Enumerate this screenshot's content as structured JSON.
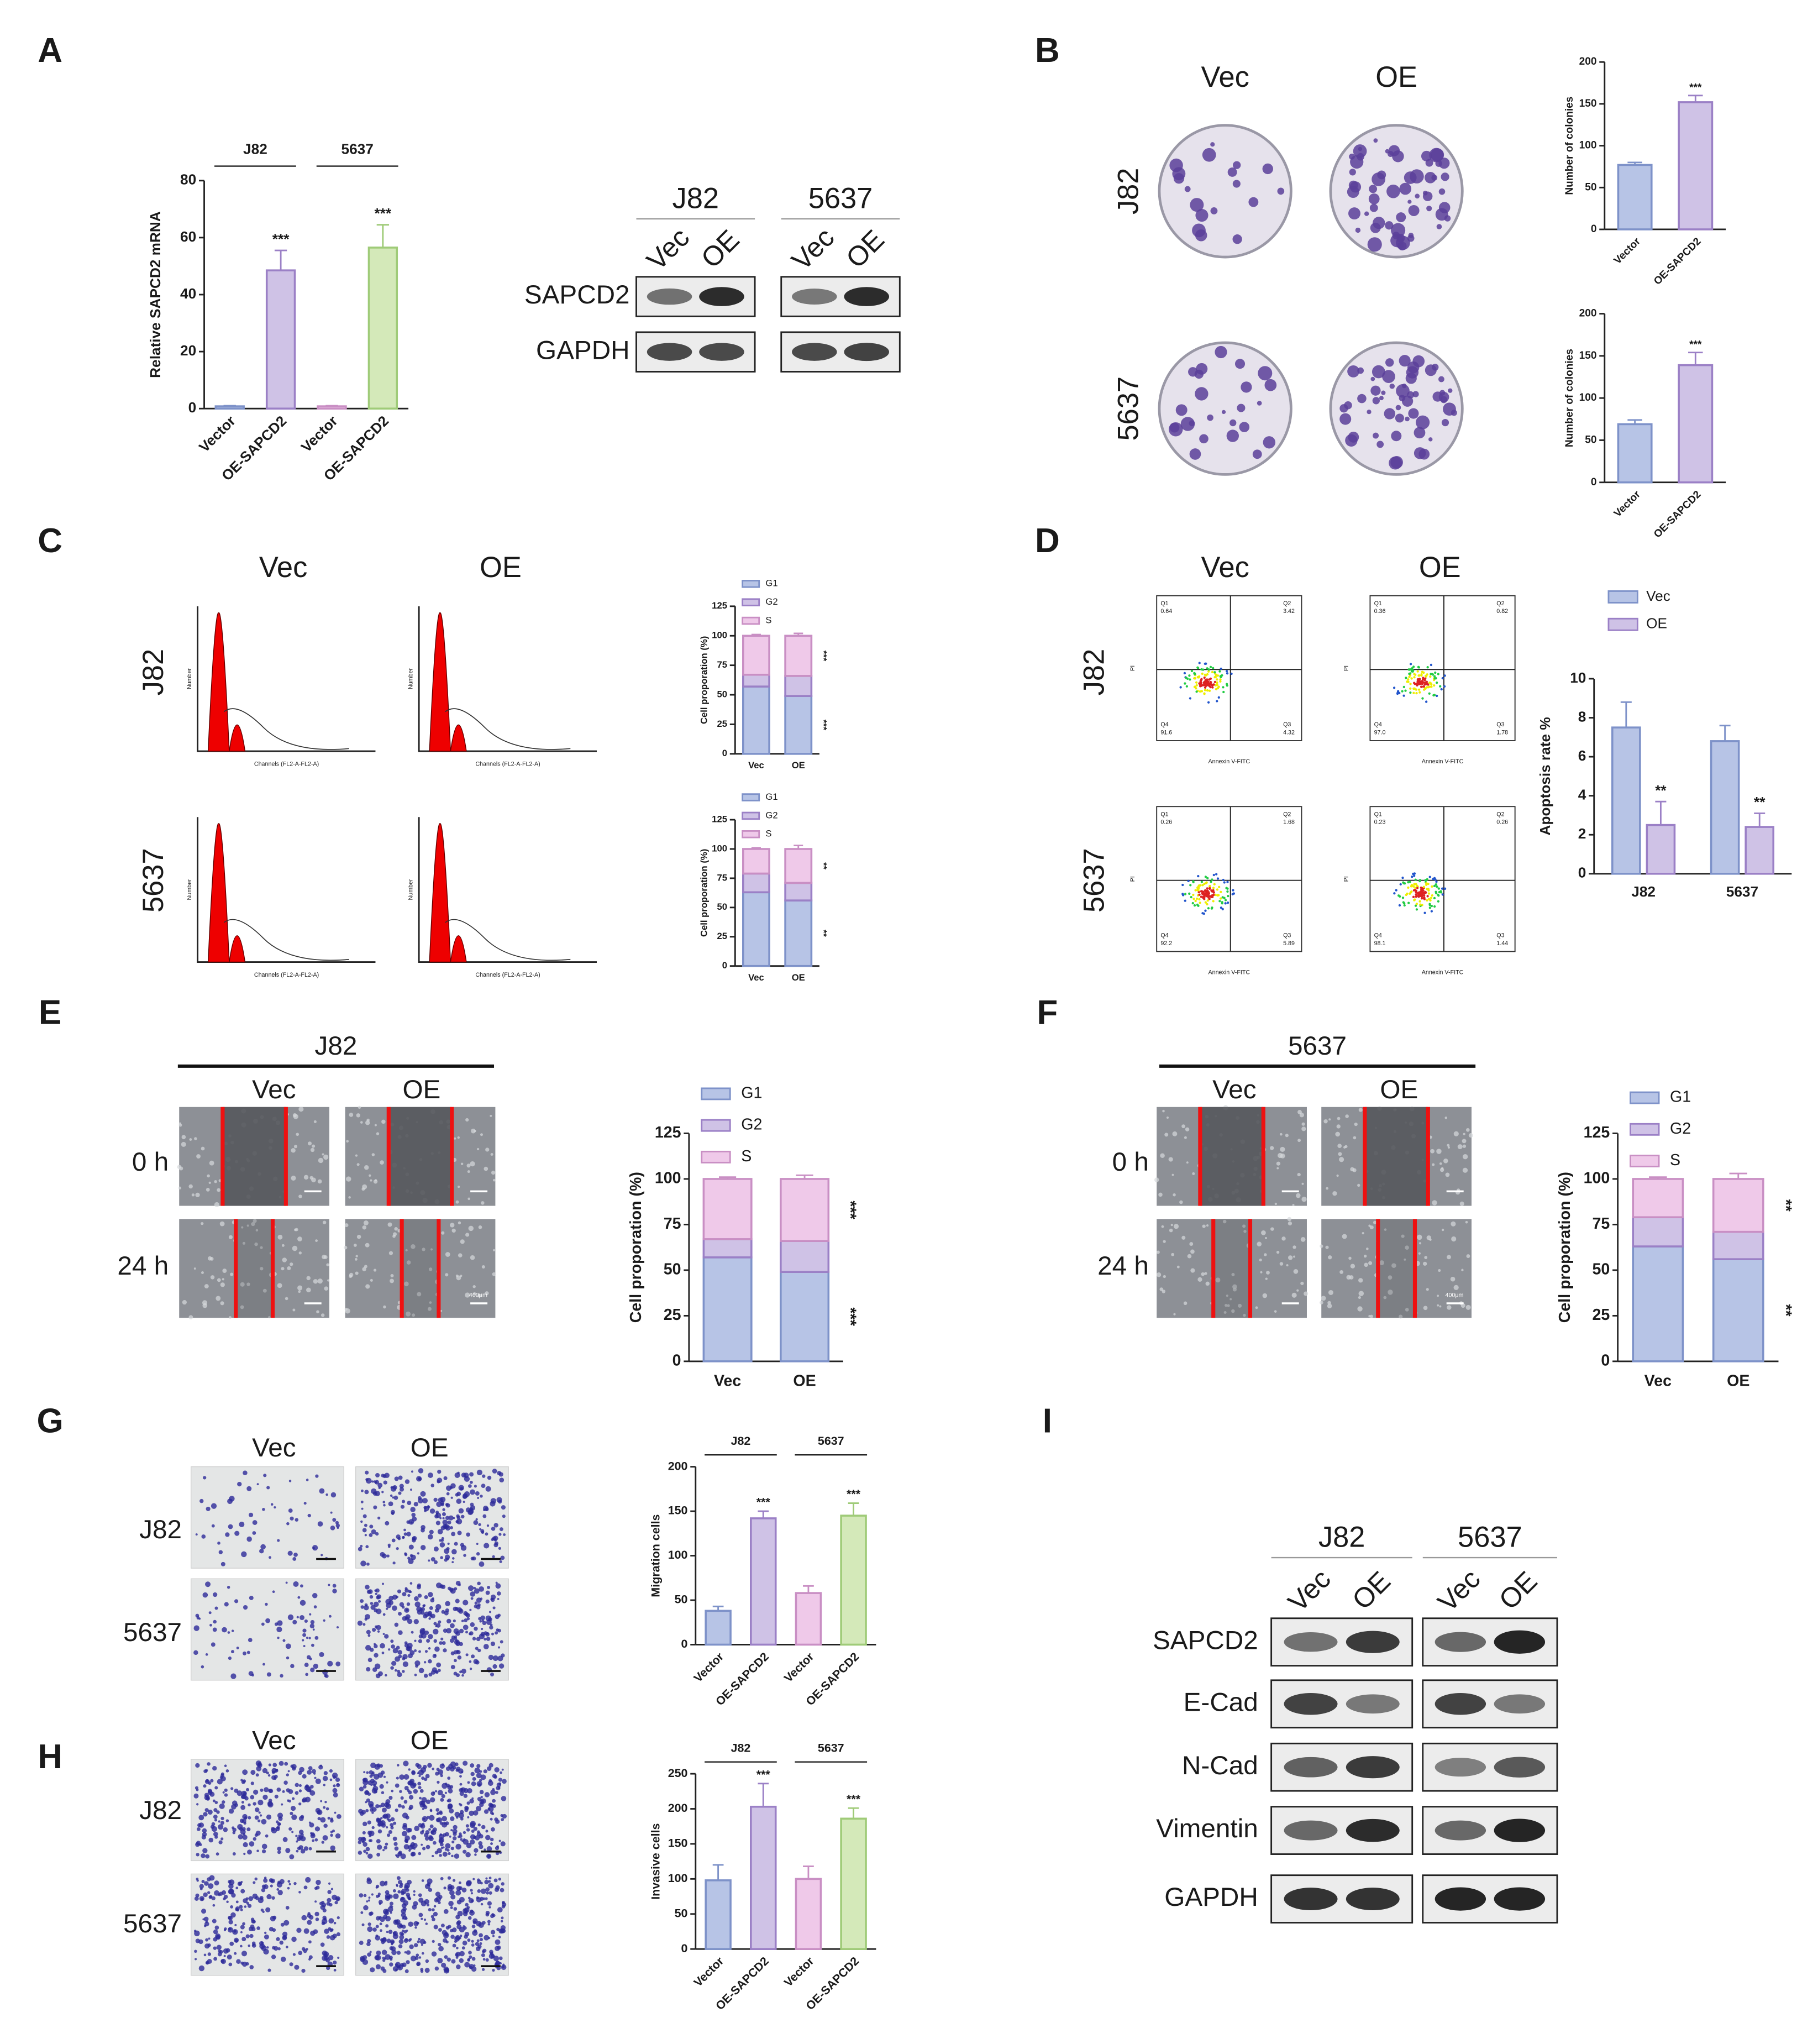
{
  "figure": {
    "panels": [
      "A",
      "B",
      "C",
      "D",
      "E",
      "F",
      "G",
      "H",
      "I"
    ],
    "a_blot": {
      "cell_lines": [
        "J82",
        "5637"
      ],
      "conditions": [
        "Vec",
        "OE",
        "Vec",
        "OE"
      ],
      "proteins": [
        "SAPCD2",
        "GAPDH"
      ]
    },
    "b_images": {
      "columns": [
        "Vec",
        "OE"
      ],
      "rows": [
        "J82",
        "5637"
      ]
    },
    "c_images": {
      "columns": [
        "Vec",
        "OE"
      ],
      "rows": [
        "J82",
        "5637"
      ],
      "x_label": "Channels (FL2-A-FL2-A)",
      "y_label": "Number"
    },
    "d_images": {
      "columns": [
        "Vec",
        "OE"
      ],
      "rows": [
        "J82",
        "5637"
      ],
      "x_label": "Annexin V-FITC",
      "y_label": "PI",
      "quadrant_names": [
        "Q1",
        "Q2",
        "Q4",
        "Q3"
      ],
      "quadrants": [
        [
          "0.64",
          "3.42",
          "91.6",
          "4.32"
        ],
        [
          "0.36",
          "0.82",
          "97.0",
          "1.78"
        ],
        [
          "0.26",
          "1.68",
          "92.2",
          "5.89"
        ],
        [
          "0.23",
          "0.26",
          "98.1",
          "1.44"
        ]
      ]
    },
    "e_images": {
      "title": "J82",
      "columns": [
        "Vec",
        "OE"
      ],
      "rows": [
        "0 h",
        "24 h"
      ],
      "scale": "400μm"
    },
    "f_images": {
      "title": "5637",
      "columns": [
        "Vec",
        "OE"
      ],
      "rows": [
        "0 h",
        "24 h"
      ],
      "scale": "400μm"
    },
    "g_images": {
      "columns": [
        "Vec",
        "OE"
      ],
      "rows": [
        "J82",
        "5637"
      ]
    },
    "h_images": {
      "columns": [
        "Vec",
        "OE"
      ],
      "rows": [
        "J82",
        "5637"
      ]
    },
    "i_blot": {
      "cell_lines": [
        "J82",
        "5637"
      ],
      "conditions": [
        "Vec",
        "OE",
        "Vec",
        "OE"
      ],
      "proteins": [
        "SAPCD2",
        "E-Cad",
        "N-Cad",
        "Vimentin",
        "GAPDH"
      ]
    }
  },
  "chart_data": [
    {
      "type": "bar",
      "y_label": "Relative SAPCD2 mRNA",
      "categories": [
        "Vector",
        "OE-SAPCD2",
        "Vector",
        "OE-SAPCD2"
      ],
      "values": [
        0.8,
        48.5,
        0.8,
        56.5
      ],
      "errors": [
        0.2,
        7,
        0.2,
        8
      ],
      "significance": [
        null,
        "***",
        null,
        "***"
      ],
      "group_labels": [
        "J82",
        "5637"
      ],
      "colors": [
        "#b7c4e6",
        "#cfc2e6",
        "#efc9e9",
        "#d4e9b9"
      ],
      "edge_colors": [
        "#7e92c9",
        "#9b80c6",
        "#c98fc4",
        "#9fcb78"
      ],
      "ylim": [
        0,
        80
      ],
      "yticks": [
        0,
        20,
        40,
        60,
        80
      ]
    },
    {
      "type": "bar",
      "y_label": "Number of colonies",
      "categories": [
        "Vector",
        "OE-SAPCD2"
      ],
      "values": [
        77,
        152
      ],
      "errors": [
        3,
        8
      ],
      "significance": [
        null,
        "***"
      ],
      "colors": [
        "#b7c4e6",
        "#cfc2e6"
      ],
      "edge_colors": [
        "#7e92c9",
        "#9b80c6"
      ],
      "ylim": [
        0,
        200
      ],
      "yticks": [
        0,
        50,
        100,
        150,
        200
      ]
    },
    {
      "type": "bar",
      "y_label": "Number of colonies",
      "categories": [
        "Vector",
        "OE-SAPCD2"
      ],
      "values": [
        69,
        139
      ],
      "errors": [
        5,
        15
      ],
      "significance": [
        null,
        "***"
      ],
      "colors": [
        "#b7c4e6",
        "#cfc2e6"
      ],
      "edge_colors": [
        "#7e92c9",
        "#9b80c6"
      ],
      "ylim": [
        0,
        200
      ],
      "yticks": [
        0,
        50,
        100,
        150,
        200
      ]
    },
    {
      "type": "stacked_bar",
      "y_label": "Cell proporation (%)",
      "categories": [
        "Vec",
        "OE"
      ],
      "series": [
        {
          "name": "G1",
          "color": "#b7c4e6",
          "edge_color": "#7e92c9",
          "values": [
            57,
            49
          ],
          "errors": [
            2,
            2
          ],
          "significance": "***"
        },
        {
          "name": "G2",
          "color": "#cfc2e6",
          "edge_color": "#9b80c6",
          "values": [
            10,
            17
          ],
          "errors": [
            2,
            3
          ],
          "significance": null
        },
        {
          "name": "S",
          "color": "#efc9e9",
          "edge_color": "#c98fc4",
          "values": [
            33,
            34
          ],
          "errors": [
            1,
            2
          ],
          "significance": "***"
        }
      ],
      "ylim": [
        0,
        125
      ],
      "yticks": [
        0,
        25,
        50,
        75,
        100,
        125
      ]
    },
    {
      "type": "stacked_bar",
      "y_label": "Cell proporation (%)",
      "categories": [
        "Vec",
        "OE"
      ],
      "series": [
        {
          "name": "G1",
          "color": "#b7c4e6",
          "edge_color": "#7e92c9",
          "values": [
            63,
            56
          ],
          "errors": [
            2,
            2
          ],
          "significance": "**"
        },
        {
          "name": "G2",
          "color": "#cfc2e6",
          "edge_color": "#9b80c6",
          "values": [
            16,
            15
          ],
          "errors": [
            2,
            3
          ],
          "significance": null
        },
        {
          "name": "S",
          "color": "#efc9e9",
          "edge_color": "#c98fc4",
          "values": [
            21,
            29
          ],
          "errors": [
            1,
            3
          ],
          "significance": "**"
        }
      ],
      "ylim": [
        0,
        125
      ],
      "yticks": [
        0,
        25,
        50,
        75,
        100,
        125
      ]
    },
    {
      "type": "grouped_bar",
      "y_label": "Apoptosis rate %",
      "categories": [
        "J82",
        "5637"
      ],
      "series": [
        {
          "name": "Vec",
          "color": "#b7c4e6",
          "edge_color": "#7e92c9",
          "values": [
            7.5,
            6.8
          ],
          "errors": [
            1.3,
            0.8
          ],
          "significance": [
            null,
            null
          ]
        },
        {
          "name": "OE",
          "color": "#cfc2e6",
          "edge_color": "#9b80c6",
          "values": [
            2.5,
            2.4
          ],
          "errors": [
            1.2,
            0.7
          ],
          "significance": [
            "**",
            "**"
          ]
        }
      ],
      "ylim": [
        0,
        10
      ],
      "yticks": [
        0,
        2,
        4,
        6,
        8,
        10
      ]
    },
    {
      "type": "stacked_bar",
      "y_label": "Cell proporation (%)",
      "categories": [
        "Vec",
        "OE"
      ],
      "series": [
        {
          "name": "G1",
          "color": "#b7c4e6",
          "edge_color": "#7e92c9",
          "values": [
            57,
            49
          ],
          "errors": [
            2,
            2
          ],
          "significance": "***"
        },
        {
          "name": "G2",
          "color": "#cfc2e6",
          "edge_color": "#9b80c6",
          "values": [
            10,
            17
          ],
          "errors": [
            2,
            3
          ],
          "significance": null
        },
        {
          "name": "S",
          "color": "#efc9e9",
          "edge_color": "#c98fc4",
          "values": [
            33,
            34
          ],
          "errors": [
            1,
            2
          ],
          "significance": "***"
        }
      ],
      "ylim": [
        0,
        125
      ],
      "yticks": [
        0,
        25,
        50,
        75,
        100,
        125
      ]
    },
    {
      "type": "stacked_bar",
      "y_label": "Cell proporation (%)",
      "categories": [
        "Vec",
        "OE"
      ],
      "series": [
        {
          "name": "G1",
          "color": "#b7c4e6",
          "edge_color": "#7e92c9",
          "values": [
            63,
            56
          ],
          "errors": [
            2,
            2
          ],
          "significance": "**"
        },
        {
          "name": "G2",
          "color": "#cfc2e6",
          "edge_color": "#9b80c6",
          "values": [
            16,
            15
          ],
          "errors": [
            2,
            3
          ],
          "significance": null
        },
        {
          "name": "S",
          "color": "#efc9e9",
          "edge_color": "#c98fc4",
          "values": [
            21,
            29
          ],
          "errors": [
            1,
            3
          ],
          "significance": "**"
        }
      ],
      "ylim": [
        0,
        125
      ],
      "yticks": [
        0,
        25,
        50,
        75,
        100,
        125
      ]
    },
    {
      "type": "bar",
      "y_label": "Migration cells",
      "categories": [
        "Vector",
        "OE-SAPCD2",
        "Vector",
        "OE-SAPCD2"
      ],
      "values": [
        38,
        142,
        58,
        145
      ],
      "errors": [
        5,
        8,
        8,
        14
      ],
      "significance": [
        null,
        "***",
        null,
        "***"
      ],
      "group_labels": [
        "J82",
        "5637"
      ],
      "colors": [
        "#b7c4e6",
        "#cfc2e6",
        "#efc9e9",
        "#d4e9b9"
      ],
      "edge_colors": [
        "#7e92c9",
        "#9b80c6",
        "#c98fc4",
        "#9fcb78"
      ],
      "ylim": [
        0,
        200
      ],
      "yticks": [
        0,
        50,
        100,
        150,
        200
      ]
    },
    {
      "type": "bar",
      "y_label": "Invasive cells",
      "categories": [
        "Vector",
        "OE-SAPCD2",
        "Vector",
        "OE-SAPCD2"
      ],
      "values": [
        98,
        203,
        100,
        186
      ],
      "errors": [
        22,
        33,
        18,
        15
      ],
      "significance": [
        null,
        "***",
        null,
        "***"
      ],
      "group_labels": [
        "J82",
        "5637"
      ],
      "colors": [
        "#b7c4e6",
        "#cfc2e6",
        "#efc9e9",
        "#d4e9b9"
      ],
      "edge_colors": [
        "#7e92c9",
        "#9b80c6",
        "#c98fc4",
        "#9fcb78"
      ],
      "ylim": [
        0,
        250
      ],
      "yticks": [
        0,
        50,
        100,
        150,
        200,
        250
      ]
    }
  ]
}
